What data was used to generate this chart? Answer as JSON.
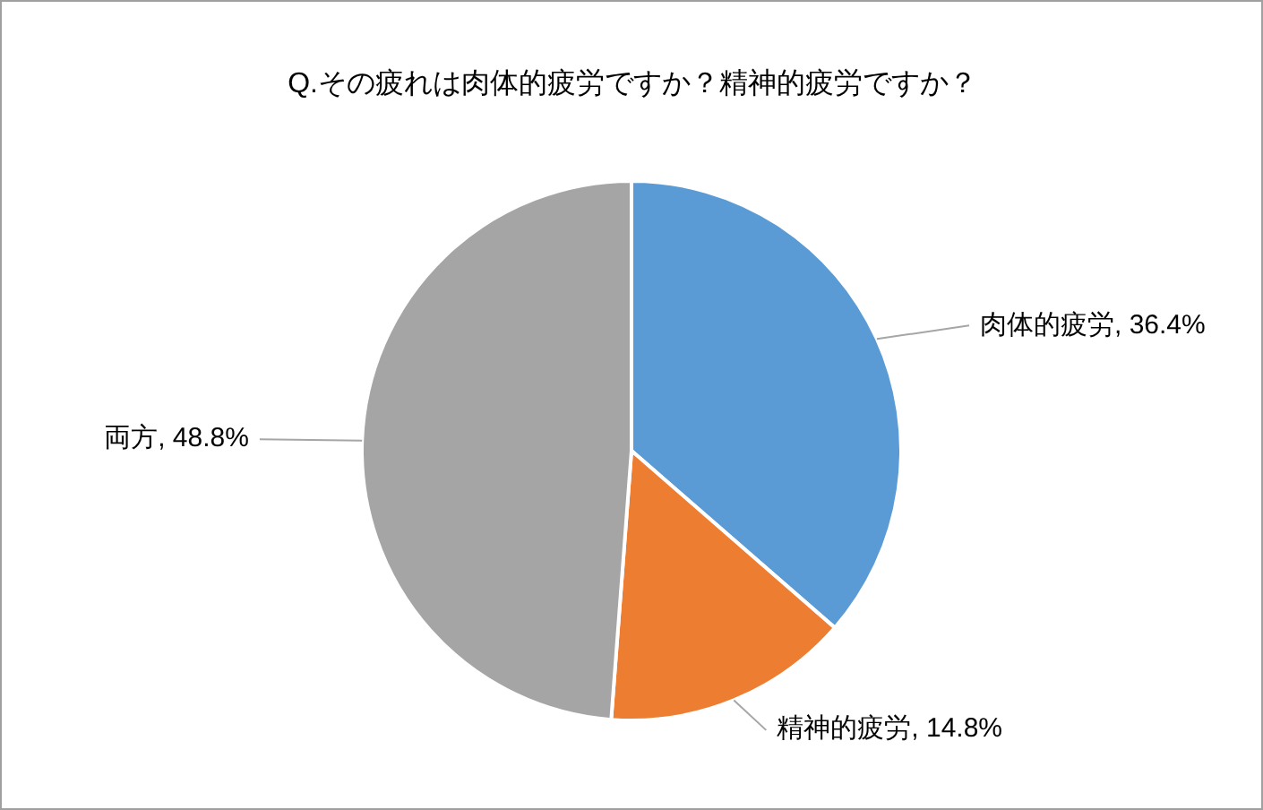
{
  "chart_data": {
    "type": "pie",
    "title": "Q.その疲れは肉体的疲労ですか？精神的疲労ですか？",
    "categories": [
      "肉体的疲労",
      "精神的疲労",
      "両方"
    ],
    "values": [
      36.4,
      14.8,
      48.8
    ],
    "colors": [
      "#5b9bd5",
      "#ed7d31",
      "#a5a5a5"
    ],
    "value_labels": [
      "36.4%",
      "14.8%",
      "48.8%"
    ],
    "legend": false
  }
}
